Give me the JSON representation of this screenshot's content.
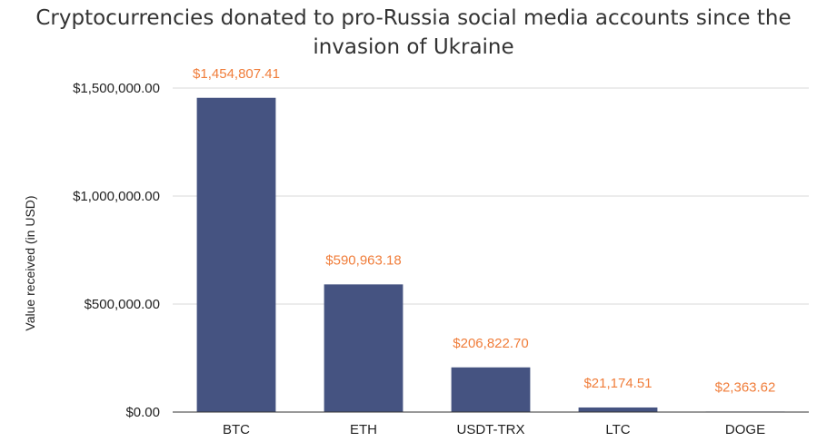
{
  "chart_data": {
    "type": "bar",
    "title": "Cryptocurrencies donated to pro-Russia social media accounts since the invasion of Ukraine",
    "xlabel": "",
    "ylabel": "Value received (in USD)",
    "categories": [
      "BTC",
      "ETH",
      "USDT-TRX",
      "LTC",
      "DOGE"
    ],
    "values": [
      1454807.41,
      590963.18,
      206822.7,
      21174.51,
      2363.62
    ],
    "data_labels": [
      "$1,454,807.41",
      "$590,963.18",
      "$206,822.70",
      "$21,174.51",
      "$2,363.62"
    ],
    "ylim": [
      0,
      1500000
    ],
    "yticks": [
      0,
      500000,
      1000000,
      1500000
    ],
    "ytick_labels": [
      "$0.00",
      "$500,000.00",
      "$1,000,000.00",
      "$1,500,000.00"
    ],
    "grid": true,
    "colors": {
      "bar": "#455381",
      "data_label": "#F07D3A",
      "grid": "#d9d9d9",
      "axis": "#333333"
    }
  }
}
